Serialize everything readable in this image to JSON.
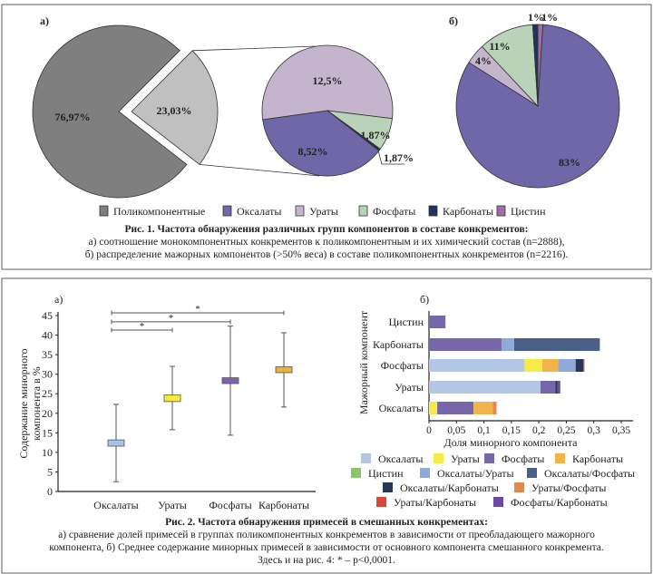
{
  "figure1": {
    "panel_a_label": "а)",
    "panel_b_label": "б)",
    "legend": [
      {
        "label": "Поликомпонентные",
        "color": "#7f7f7f"
      },
      {
        "label": "Оксалаты",
        "color": "#6f67a8"
      },
      {
        "label": "Ураты",
        "color": "#c4b4cc"
      },
      {
        "label": "Фосфаты",
        "color": "#b9d3b9"
      },
      {
        "label": "Карбонаты",
        "color": "#1e3460"
      },
      {
        "label": "Цистин",
        "color": "#a06ea0"
      }
    ],
    "caption": {
      "title": "Рис. 1. Частота обнаружения различных групп компонентов в составе конкрементов:",
      "line1": "а) соотношение монокомпонентных конкрементов к поликомпонентным и их химический состав (n=2888),",
      "line2": "б) распределение мажорных компонентов (>50% веса) в составе поликомпонентных конкрементов (n=2216)."
    }
  },
  "figure2": {
    "panel_a_label": "а)",
    "panel_b_label": "б)",
    "caption": {
      "title": "Рис. 2. Частота обнаружения примесей в смешанных конкрементах:",
      "line1": "а) сравнение долей примесей в группах поликомпонентных конкрементов в зависимости от преобладающего мажорного",
      "line2": "компонента, б) Среднее содержание минорных примесей в зависимости от основного компонента смешанного конкремента.",
      "line3": "Здесь и на рис. 4: * – p<0,0001."
    }
  },
  "chart_data": [
    {
      "type": "pie",
      "panel": "а)",
      "slices": [
        {
          "name": "Поликомпонентные",
          "value": 76.97,
          "label": "76,97%",
          "color": "#7f7f7f"
        },
        {
          "value": 23.03,
          "label": "23,03%",
          "color": "#c0c0c0",
          "exploded": true
        }
      ]
    },
    {
      "type": "pie",
      "panel": "а)",
      "breakdown_of": "23,03%",
      "slices": [
        {
          "name": "Ураты",
          "value": 12.5,
          "label": "12,5%",
          "color": "#c4b4cc"
        },
        {
          "name": "Фосфаты",
          "value": 1.87,
          "label": "1,87%",
          "color": "#b9d3b9"
        },
        {
          "name": "Карбонаты",
          "value": 1.87,
          "label": "1,87%",
          "color": "#1e3460"
        },
        {
          "name": "Оксалаты",
          "value": 8.52,
          "label": "8,52%",
          "color": "#6f67a8"
        }
      ]
    },
    {
      "type": "pie",
      "panel": "б)",
      "slices": [
        {
          "name": "Цистин",
          "value": 1,
          "label": "1%",
          "color": "#a06ea0"
        },
        {
          "name": "Оксалаты",
          "value": 83,
          "label": "83%",
          "color": "#6f67a8"
        },
        {
          "name": "Ураты",
          "value": 4,
          "label": "4%",
          "color": "#c4b4cc"
        },
        {
          "name": "Фосфаты",
          "value": 11,
          "label": "11%",
          "color": "#b9d3b9"
        },
        {
          "name": "Карбонаты",
          "value": 1,
          "label": "1%",
          "color": "#1e3460"
        }
      ]
    },
    {
      "type": "boxplot",
      "panel": "а)",
      "ylabel_lines": [
        "Содержание минорного",
        "компонента в %"
      ],
      "ylim": [
        0,
        45
      ],
      "yticks": [
        "0",
        "5",
        "10",
        "15",
        "20",
        "25",
        "30",
        "35",
        "40",
        "45"
      ],
      "categories": [
        "Оксалаты",
        "Ураты",
        "Фосфаты",
        "Карбонаты"
      ],
      "boxes": [
        {
          "min": 2.5,
          "q1": 11.6,
          "q3": 13.2,
          "max": 22.3,
          "color": "#a9c3e6"
        },
        {
          "min": 15.8,
          "q1": 23.0,
          "q3": 24.7,
          "max": 32.0,
          "color": "#f5ea3c"
        },
        {
          "min": 14.4,
          "q1": 27.6,
          "q3": 29.1,
          "max": 42.3,
          "color": "#7b62b4"
        },
        {
          "min": 21.6,
          "q1": 30.4,
          "q3": 31.9,
          "max": 40.6,
          "color": "#f0b03c"
        }
      ],
      "significance": [
        {
          "from": "Оксалаты",
          "to": "Ураты",
          "level": 41.3,
          "label": "*"
        },
        {
          "from": "Оксалаты",
          "to": "Фосфаты",
          "level": 43.4,
          "label": "*"
        },
        {
          "from": "Оксалаты",
          "to": "Карбонаты",
          "level": 45.7,
          "label": "*"
        }
      ],
      "grid": false
    },
    {
      "type": "bar",
      "orientation": "horizontal",
      "stacked": true,
      "panel": "б)",
      "xlabel": "Доля минорного компонента",
      "ylabel": "Мажорный компонент",
      "xlim": [
        0,
        0.37
      ],
      "xticks": [
        "0",
        "0,05",
        "0,1",
        "0,15",
        "0,2",
        "0,25",
        "0,3",
        "0,35"
      ],
      "categories": [
        "Цистин",
        "Карбонаты",
        "Фосфаты",
        "Ураты",
        "Оксалаты"
      ],
      "series": [
        {
          "name": "Оксалаты",
          "color": "#b3c7e5",
          "values": [
            0,
            0,
            0.174,
            0.203,
            0
          ]
        },
        {
          "name": "Ураты",
          "color": "#f6eb46",
          "values": [
            0,
            0,
            0.032,
            0,
            0.015
          ]
        },
        {
          "name": "Фосфаты",
          "color": "#7666ab",
          "values": [
            0.03,
            0.132,
            0,
            0.027,
            0.066
          ]
        },
        {
          "name": "Карбонаты",
          "color": "#f0b44a",
          "values": [
            0,
            0,
            0.029,
            0,
            0.035
          ]
        },
        {
          "name": "Цистин",
          "color": "#8cc46a",
          "values": [
            0,
            0,
            0,
            0,
            0
          ]
        },
        {
          "name": "Оксалаты/Ураты",
          "color": "#8eaad8",
          "values": [
            0,
            0.023,
            0.032,
            0,
            0
          ]
        },
        {
          "name": "Оксалаты/Фосфаты",
          "color": "#4b6089",
          "values": [
            0,
            0.156,
            0,
            0,
            0
          ]
        },
        {
          "name": "Оксалаты/Карбонаты",
          "color": "#273757",
          "values": [
            0,
            0,
            0.014,
            0.004,
            0
          ]
        },
        {
          "name": "Ураты/Фосфаты",
          "color": "#e8874a",
          "values": [
            0,
            0,
            0,
            0,
            0.007
          ]
        },
        {
          "name": "Ураты/Карбонаты",
          "color": "#d9493a",
          "values": [
            0,
            0,
            0.002,
            0,
            0
          ]
        },
        {
          "name": "Фосфаты/Карбонаты",
          "color": "#6a4aa2",
          "values": [
            0,
            0,
            0,
            0.005,
            0
          ]
        }
      ],
      "legend_placement": "bottom",
      "grid": false
    }
  ]
}
